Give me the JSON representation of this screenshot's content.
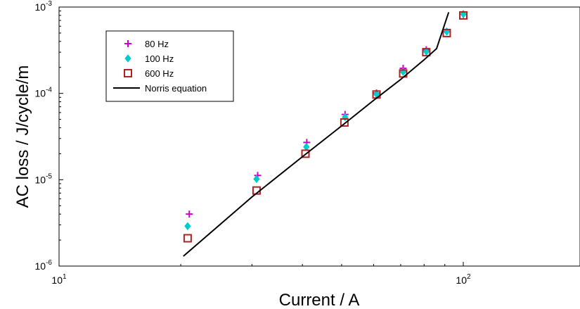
{
  "chart_data": {
    "type": "scatter",
    "xlabel": "Current / A",
    "ylabel": "AC loss / J/cycle/m",
    "xscale": "log",
    "yscale": "log",
    "xlim": [
      10,
      200
    ],
    "ylim": [
      1e-06,
      0.001
    ],
    "grid": false,
    "legend_position": "top-left",
    "x_ticks": [
      {
        "base": "10",
        "exp": "1"
      },
      {
        "base": "10",
        "exp": "2"
      }
    ],
    "y_ticks": [
      {
        "base": "10",
        "exp": "-6"
      },
      {
        "base": "10",
        "exp": "-5"
      },
      {
        "base": "10",
        "exp": "-4"
      },
      {
        "base": "10",
        "exp": "-3"
      }
    ],
    "series": [
      {
        "name": "80 Hz",
        "marker": "plus",
        "color": "#cc00cc",
        "points": [
          [
            21,
            4e-06
          ],
          [
            31,
            1.12e-05
          ],
          [
            41,
            2.7e-05
          ],
          [
            51,
            5.7e-05
          ],
          [
            61,
            0.000101
          ],
          [
            71,
            0.000195
          ],
          [
            81,
            0.00032
          ],
          [
            91,
            0.00052
          ],
          [
            100,
            0.00082
          ]
        ]
      },
      {
        "name": "100 Hz",
        "marker": "diamond",
        "color": "#00cccc",
        "points": [
          [
            20.8,
            2.9e-06
          ],
          [
            30.8,
            1.02e-05
          ],
          [
            40.9,
            2.4e-05
          ],
          [
            51,
            5.3e-05
          ],
          [
            61,
            9.8e-05
          ],
          [
            71,
            0.000178
          ],
          [
            81,
            0.000305
          ],
          [
            91,
            0.00052
          ],
          [
            100,
            0.00083
          ]
        ]
      },
      {
        "name": "600 Hz",
        "marker": "square",
        "color": "#b22222",
        "points": [
          [
            20.8,
            2.1e-06
          ],
          [
            30.8,
            7.5e-06
          ],
          [
            40.7,
            2e-05
          ],
          [
            50.8,
            4.6e-05
          ],
          [
            61,
            9.7e-05
          ],
          [
            71,
            0.00017
          ],
          [
            81,
            0.0003
          ],
          [
            91,
            0.0005
          ],
          [
            100,
            0.0008
          ]
        ]
      },
      {
        "name": "Norris equation",
        "marker": "line",
        "color": "#000000",
        "points": [
          [
            20.3,
            1.3e-06
          ],
          [
            30,
            6.3e-06
          ],
          [
            40,
            1.85e-05
          ],
          [
            50,
            4.2e-05
          ],
          [
            60,
            8.3e-05
          ],
          [
            70,
            0.000145
          ],
          [
            80,
            0.000245
          ],
          [
            85.9,
            0.00033
          ],
          [
            92,
            0.00087
          ]
        ]
      }
    ]
  }
}
